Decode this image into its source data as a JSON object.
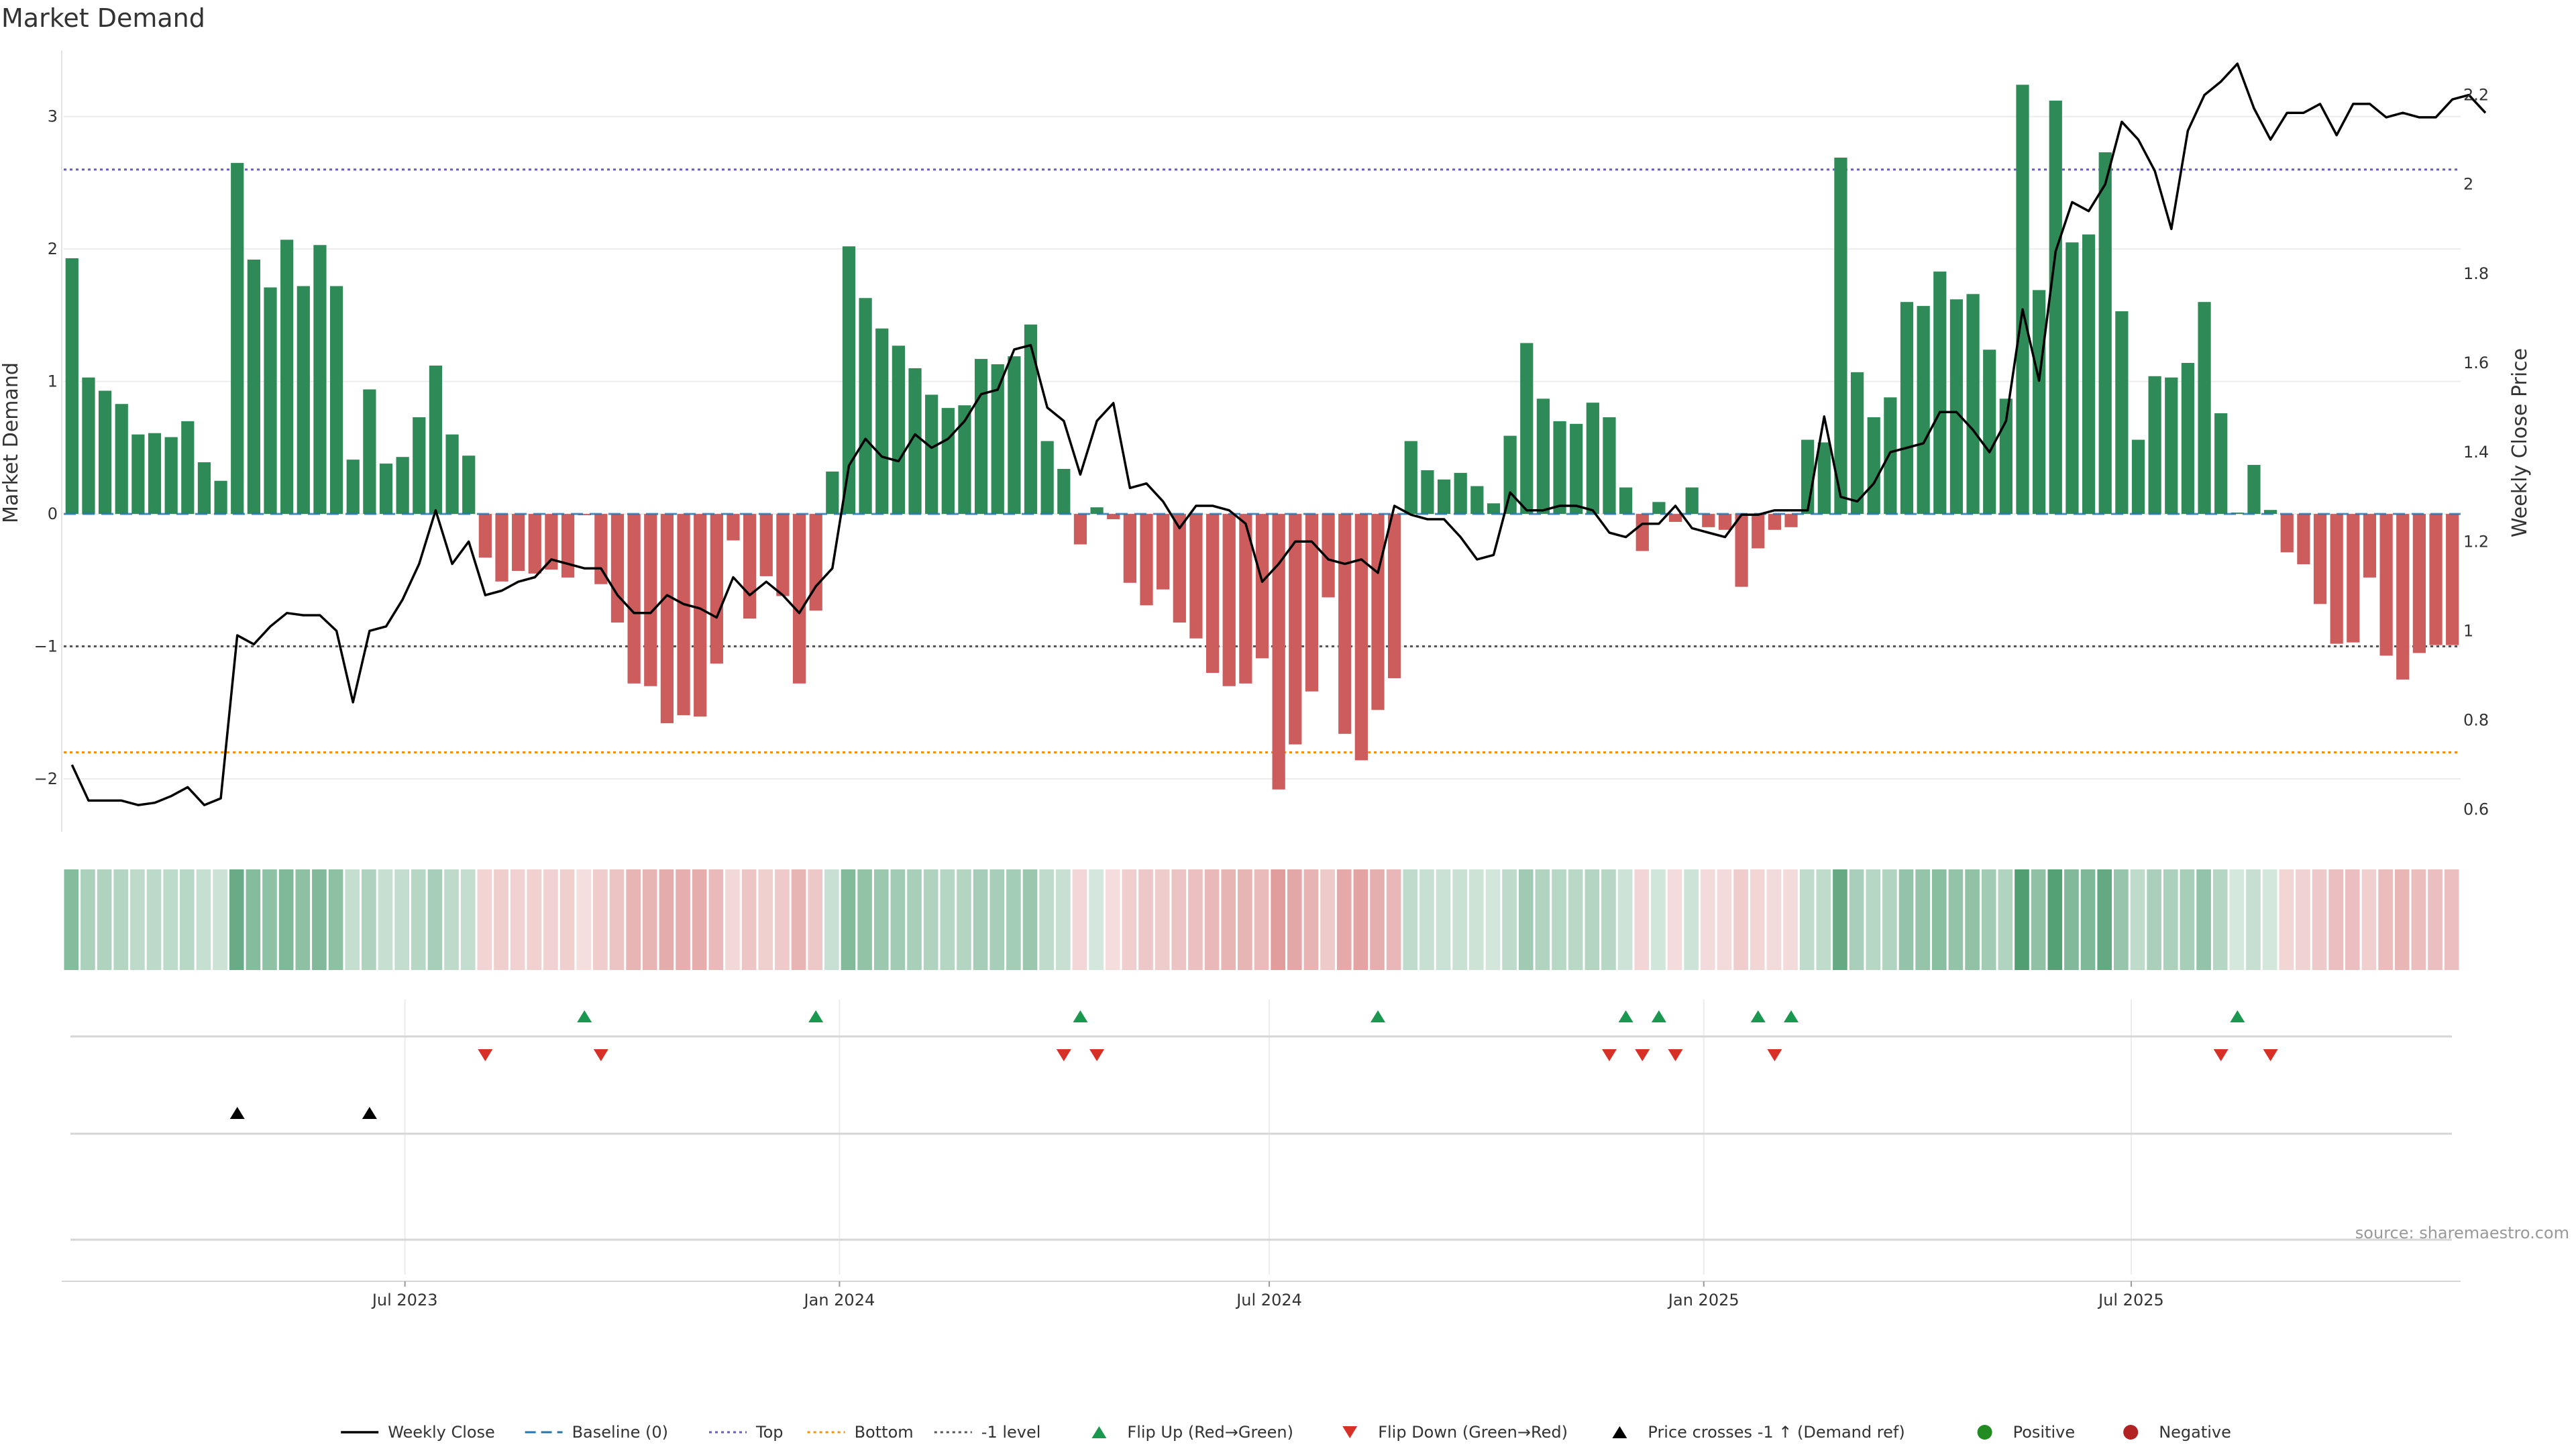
{
  "title": "Market Demand",
  "source": "source: sharemaestro.com",
  "colors": {
    "positive": "#2e8b57",
    "negative": "#cd5c5c",
    "price": "#000000",
    "baseline": "#1f77b4",
    "top": "#6a5acd",
    "bottom": "#ff8c00",
    "minus1": "#555555",
    "flip_up": "#1a9850",
    "flip_down": "#d73027",
    "cross": "#000000",
    "legend_positive": "#228b22",
    "legend_negative": "#b22222"
  },
  "chart_data": {
    "type": "bar",
    "x_start": "2023-02-10",
    "x_step_days": 7,
    "xlabel": "",
    "ylabel": "Market Demand",
    "y2label": "Weekly Close Price",
    "ylim": [
      -2.4,
      3.5
    ],
    "y2lim": [
      0.55,
      2.3
    ],
    "y_ticks": [
      -2,
      -1,
      0,
      1,
      2,
      3
    ],
    "y_tick_labels": [
      "−2",
      "−1",
      "0",
      "1",
      "2",
      "3"
    ],
    "y2_ticks": [
      0.6,
      0.8,
      1,
      1.2,
      1.4,
      1.6,
      1.8,
      2,
      2.2
    ],
    "y2_tick_labels": [
      "0.6",
      "0.8",
      "1",
      "1.2",
      "1.4",
      "1.6",
      "1.8",
      "2",
      "2.2"
    ],
    "x_ticks": [
      "2023-07-01",
      "2024-01-01",
      "2024-07-01",
      "2025-01-01",
      "2025-07-01"
    ],
    "x_tick_labels": [
      "Jul 2023",
      "Jan 2024",
      "Jul 2024",
      "Jan 2025",
      "Jul 2025"
    ],
    "reference_lines": {
      "baseline": 0,
      "top": 2.6,
      "bottom": -1.8,
      "minus1": -1
    },
    "demand": [
      1.93,
      1.03,
      0.93,
      0.83,
      0.6,
      0.61,
      0.58,
      0.7,
      0.39,
      0.25,
      2.65,
      1.92,
      1.71,
      2.07,
      1.72,
      2.03,
      1.72,
      0.41,
      0.94,
      0.38,
      0.43,
      0.73,
      1.12,
      0.6,
      0.44,
      -0.33,
      -0.51,
      -0.43,
      -0.45,
      -0.42,
      -0.48,
      -0.01,
      -0.53,
      -0.82,
      -1.28,
      -1.3,
      -1.58,
      -1.52,
      -1.53,
      -1.13,
      -0.2,
      -0.79,
      -0.47,
      -0.62,
      -1.28,
      -0.73,
      0.32,
      2.02,
      1.63,
      1.4,
      1.27,
      1.1,
      0.9,
      0.8,
      0.82,
      1.17,
      1.13,
      1.19,
      1.43,
      0.55,
      0.34,
      -0.23,
      0.05,
      -0.04,
      -0.52,
      -0.69,
      -0.57,
      -0.82,
      -0.94,
      -1.2,
      -1.3,
      -1.28,
      -1.09,
      -2.08,
      -1.74,
      -1.34,
      -0.63,
      -1.66,
      -1.86,
      -1.48,
      -1.24,
      0.55,
      0.33,
      0.26,
      0.31,
      0.21,
      0.08,
      0.59,
      1.29,
      0.87,
      0.7,
      0.68,
      0.84,
      0.73,
      0.2,
      -0.28,
      0.09,
      -0.06,
      0.2,
      -0.1,
      -0.12,
      -0.55,
      -0.26,
      -0.12,
      -0.1,
      0.56,
      0.54,
      2.69,
      1.07,
      0.73,
      0.88,
      1.6,
      1.57,
      1.83,
      1.62,
      1.66,
      1.24,
      0.87,
      3.24,
      1.69,
      3.12,
      2.05,
      2.11,
      2.73,
      1.53,
      0.56,
      1.04,
      1.03,
      1.14,
      1.6,
      0.76,
      0.01,
      0.37,
      0.03,
      -0.29,
      -0.38,
      -0.68,
      -0.98,
      -0.97,
      -0.48,
      -1.07,
      -1.25,
      -1.05,
      -0.99,
      -0.99
    ],
    "price": [
      0.7,
      0.62,
      0.62,
      0.62,
      0.61,
      0.615,
      0.63,
      0.65,
      0.61,
      0.625,
      0.99,
      0.97,
      1.01,
      1.04,
      1.035,
      1.035,
      1.0,
      0.84,
      1.0,
      1.01,
      1.07,
      1.15,
      1.27,
      1.15,
      1.2,
      1.08,
      1.09,
      1.11,
      1.12,
      1.16,
      1.15,
      1.14,
      1.14,
      1.08,
      1.04,
      1.04,
      1.08,
      1.06,
      1.05,
      1.03,
      1.12,
      1.08,
      1.11,
      1.08,
      1.04,
      1.1,
      1.14,
      1.37,
      1.43,
      1.39,
      1.38,
      1.44,
      1.41,
      1.43,
      1.47,
      1.53,
      1.54,
      1.63,
      1.64,
      1.5,
      1.47,
      1.35,
      1.47,
      1.51,
      1.32,
      1.33,
      1.29,
      1.23,
      1.28,
      1.28,
      1.27,
      1.24,
      1.11,
      1.15,
      1.2,
      1.2,
      1.16,
      1.15,
      1.16,
      1.13,
      1.28,
      1.26,
      1.25,
      1.25,
      1.21,
      1.16,
      1.17,
      1.31,
      1.27,
      1.27,
      1.28,
      1.28,
      1.27,
      1.22,
      1.21,
      1.24,
      1.24,
      1.28,
      1.23,
      1.22,
      1.21,
      1.26,
      1.26,
      1.27,
      1.27,
      1.27,
      1.48,
      1.3,
      1.29,
      1.33,
      1.4,
      1.41,
      1.42,
      1.49,
      1.49,
      1.45,
      1.4,
      1.47,
      1.72,
      1.56,
      1.85,
      1.96,
      1.94,
      2.0,
      2.14,
      2.1,
      2.03,
      1.9,
      2.12,
      2.2,
      2.23,
      2.27,
      2.17,
      2.1,
      2.16,
      2.16,
      2.18,
      2.11,
      2.18,
      2.18,
      2.15,
      2.16,
      2.15,
      2.15,
      2.19,
      2.2,
      2.16
    ],
    "flip_up_weeks": [
      31,
      45,
      61,
      79,
      94,
      96,
      102,
      104,
      131
    ],
    "flip_down_weeks": [
      25,
      32,
      60,
      62,
      93,
      95,
      97,
      103,
      130,
      133
    ],
    "price_cross_weeks": [
      10,
      18
    ],
    "legend": [
      {
        "key": "price",
        "label": "Weekly Close"
      },
      {
        "key": "baseline",
        "label": "Baseline (0)"
      },
      {
        "key": "top",
        "label": "Top"
      },
      {
        "key": "bottom",
        "label": "Bottom"
      },
      {
        "key": "minus1",
        "label": "-1 level"
      },
      {
        "key": "flip_up",
        "label": "Flip Up (Red→Green)"
      },
      {
        "key": "flip_down",
        "label": "Flip Down (Green→Red)"
      },
      {
        "key": "cross",
        "label": "Price crosses -1 ↑ (Demand ref)"
      },
      {
        "key": "positive",
        "label": "Positive"
      },
      {
        "key": "negative",
        "label": "Negative"
      }
    ]
  }
}
